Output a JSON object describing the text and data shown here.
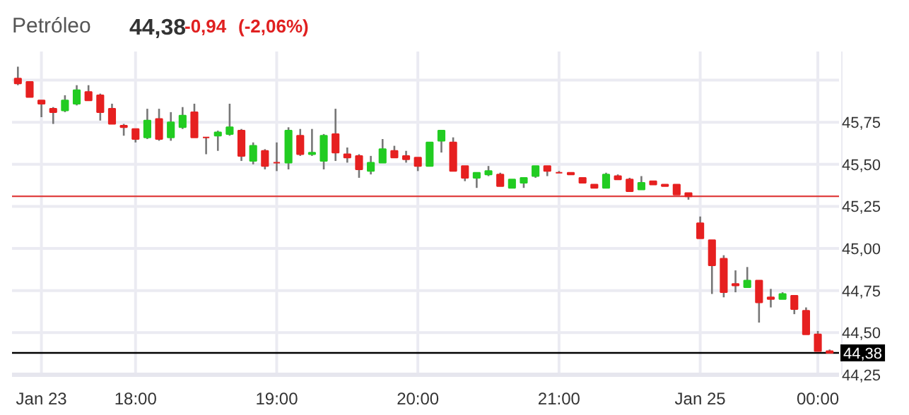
{
  "chart_data": {
    "type": "candlestick",
    "title": "Petróleo",
    "annotations": [
      "44,38",
      "-0,94",
      "(-2,06%)"
    ],
    "categories": [
      null,
      null,
      "Jan 23",
      null,
      null,
      null,
      null,
      null,
      null,
      null,
      "18:00",
      null,
      null,
      null,
      null,
      null,
      null,
      null,
      null,
      null,
      null,
      null,
      "19:00",
      null,
      null,
      null,
      null,
      null,
      null,
      null,
      null,
      null,
      null,
      null,
      "20:00",
      null,
      null,
      null,
      null,
      null,
      null,
      null,
      null,
      null,
      null,
      null,
      "21:00",
      null,
      null,
      null,
      null,
      null,
      null,
      null,
      null,
      null,
      null,
      null,
      "Jan 25",
      null,
      null,
      null,
      null,
      null,
      null,
      null,
      null,
      null,
      "00:00",
      null
    ],
    "ohlc": [
      [
        46.01,
        46.08,
        45.97,
        45.98
      ],
      [
        45.99,
        45.99,
        45.9,
        45.9
      ],
      [
        45.88,
        45.88,
        45.78,
        45.86
      ],
      [
        45.83,
        45.84,
        45.74,
        45.81
      ],
      [
        45.82,
        45.91,
        45.81,
        45.88
      ],
      [
        45.86,
        45.97,
        45.85,
        45.94
      ],
      [
        45.93,
        45.97,
        45.88,
        45.88
      ],
      [
        45.91,
        45.92,
        45.76,
        45.81
      ],
      [
        45.83,
        45.86,
        45.74,
        45.74
      ],
      [
        45.73,
        45.74,
        45.67,
        45.72
      ],
      [
        45.71,
        45.71,
        45.63,
        45.65
      ],
      [
        45.66,
        45.83,
        45.65,
        45.76
      ],
      [
        45.77,
        45.83,
        45.64,
        45.65
      ],
      [
        45.66,
        45.81,
        45.64,
        45.75
      ],
      [
        45.72,
        45.84,
        45.71,
        45.79
      ],
      [
        45.81,
        45.86,
        45.66,
        45.66
      ],
      [
        45.66,
        45.66,
        45.56,
        45.66
      ],
      [
        45.67,
        45.7,
        45.58,
        45.69
      ],
      [
        45.68,
        45.86,
        45.67,
        45.72
      ],
      [
        45.7,
        45.71,
        45.52,
        45.55
      ],
      [
        45.52,
        45.63,
        45.5,
        45.61
      ],
      [
        45.58,
        45.59,
        45.47,
        45.49
      ],
      [
        45.51,
        45.63,
        45.46,
        45.51
      ],
      [
        45.51,
        45.72,
        45.47,
        45.7
      ],
      [
        45.67,
        45.71,
        45.55,
        45.56
      ],
      [
        45.56,
        45.71,
        45.55,
        45.57
      ],
      [
        45.52,
        45.68,
        45.47,
        45.67
      ],
      [
        45.68,
        45.83,
        45.52,
        45.57
      ],
      [
        45.56,
        45.6,
        45.51,
        45.54
      ],
      [
        45.55,
        45.56,
        45.42,
        45.47
      ],
      [
        45.46,
        45.55,
        45.44,
        45.51
      ],
      [
        45.51,
        45.65,
        45.51,
        45.59
      ],
      [
        45.58,
        45.61,
        45.54,
        45.54
      ],
      [
        45.55,
        45.58,
        45.51,
        45.53
      ],
      [
        45.54,
        45.54,
        45.46,
        45.49
      ],
      [
        45.49,
        45.63,
        45.49,
        45.63
      ],
      [
        45.64,
        45.7,
        45.57,
        45.7
      ],
      [
        45.63,
        45.66,
        45.46,
        45.46
      ],
      [
        45.49,
        45.49,
        45.4,
        45.42
      ],
      [
        45.42,
        45.45,
        45.36,
        45.45
      ],
      [
        45.44,
        45.49,
        45.43,
        45.46
      ],
      [
        45.44,
        45.45,
        45.37,
        45.37
      ],
      [
        45.36,
        45.41,
        45.36,
        45.41
      ],
      [
        45.39,
        45.42,
        45.36,
        45.42
      ],
      [
        45.43,
        45.49,
        45.42,
        45.49
      ],
      [
        45.49,
        45.49,
        45.43,
        45.46
      ],
      [
        45.45,
        45.46,
        45.45,
        45.45
      ],
      [
        45.45,
        45.45,
        45.44,
        45.44
      ],
      [
        45.42,
        45.42,
        45.39,
        45.39
      ],
      [
        45.38,
        45.38,
        45.36,
        45.36
      ],
      [
        45.36,
        45.45,
        45.36,
        45.44
      ],
      [
        45.43,
        45.44,
        45.41,
        45.41
      ],
      [
        45.41,
        45.42,
        45.34,
        45.34
      ],
      [
        45.35,
        45.43,
        45.35,
        45.39
      ],
      [
        45.4,
        45.4,
        45.38,
        45.38
      ],
      [
        45.38,
        45.38,
        45.37,
        45.37
      ],
      [
        45.38,
        45.38,
        45.32,
        45.32
      ],
      [
        45.33,
        45.33,
        45.29,
        45.31
      ],
      [
        45.15,
        45.19,
        45.06,
        45.06
      ],
      [
        45.05,
        45.05,
        44.73,
        44.9
      ],
      [
        44.94,
        44.96,
        44.71,
        44.74
      ],
      [
        44.79,
        44.87,
        44.74,
        44.78
      ],
      [
        44.77,
        44.89,
        44.77,
        44.81
      ],
      [
        44.81,
        44.81,
        44.56,
        44.68
      ],
      [
        44.71,
        44.76,
        44.65,
        44.7
      ],
      [
        44.7,
        44.74,
        44.7,
        44.73
      ],
      [
        44.72,
        44.72,
        44.61,
        44.64
      ],
      [
        44.63,
        44.65,
        44.49,
        44.49
      ],
      [
        44.49,
        44.51,
        44.39,
        44.39
      ],
      [
        44.39,
        44.4,
        44.38,
        44.38
      ]
    ],
    "colors": [
      "#e62020",
      "#e62020",
      "#e62020",
      "#e62020",
      "#22cc22",
      "#22cc22",
      "#e62020",
      "#e62020",
      "#e62020",
      "#e62020",
      "#e62020",
      "#22cc22",
      "#e62020",
      "#22cc22",
      "#22cc22",
      "#e62020",
      "#e62020",
      "#22cc22",
      "#22cc22",
      "#e62020",
      "#22cc22",
      "#e62020",
      "#e62020",
      "#22cc22",
      "#e62020",
      "#22cc22",
      "#22cc22",
      "#e62020",
      "#e62020",
      "#e62020",
      "#22cc22",
      "#22cc22",
      "#e62020",
      "#e62020",
      "#e62020",
      "#22cc22",
      "#22cc22",
      "#e62020",
      "#e62020",
      "#22cc22",
      "#22cc22",
      "#e62020",
      "#22cc22",
      "#22cc22",
      "#22cc22",
      "#e62020",
      "#e62020",
      "#e62020",
      "#e62020",
      "#e62020",
      "#22cc22",
      "#e62020",
      "#e62020",
      "#22cc22",
      "#e62020",
      "#e62020",
      "#e62020",
      "#e62020",
      "#e62020",
      "#e62020",
      "#e62020",
      "#e62020",
      "#22cc22",
      "#e62020",
      "#e62020",
      "#22cc22",
      "#e62020",
      "#e62020",
      "#e62020",
      "#e62020"
    ],
    "ylim": [
      44.25,
      46.17
    ],
    "yticks": [
      {
        "value": 44.25,
        "label": "44,25"
      },
      {
        "value": 44.5,
        "label": "44,50"
      },
      {
        "value": 44.75,
        "label": "44,75"
      },
      {
        "value": 45.0,
        "label": "45,00"
      },
      {
        "value": 45.25,
        "label": "45,25"
      },
      {
        "value": 45.5,
        "label": "45,50"
      },
      {
        "value": 45.75,
        "label": "45,75"
      },
      {
        "value": 46.0,
        "label": null
      }
    ],
    "ref_lines": [
      {
        "axis": "y",
        "value": 45.31,
        "label": null,
        "color": "#e04040"
      },
      {
        "axis": "y",
        "value": 44.38,
        "label": "44,38",
        "color": "#000000"
      }
    ],
    "grid": true
  }
}
